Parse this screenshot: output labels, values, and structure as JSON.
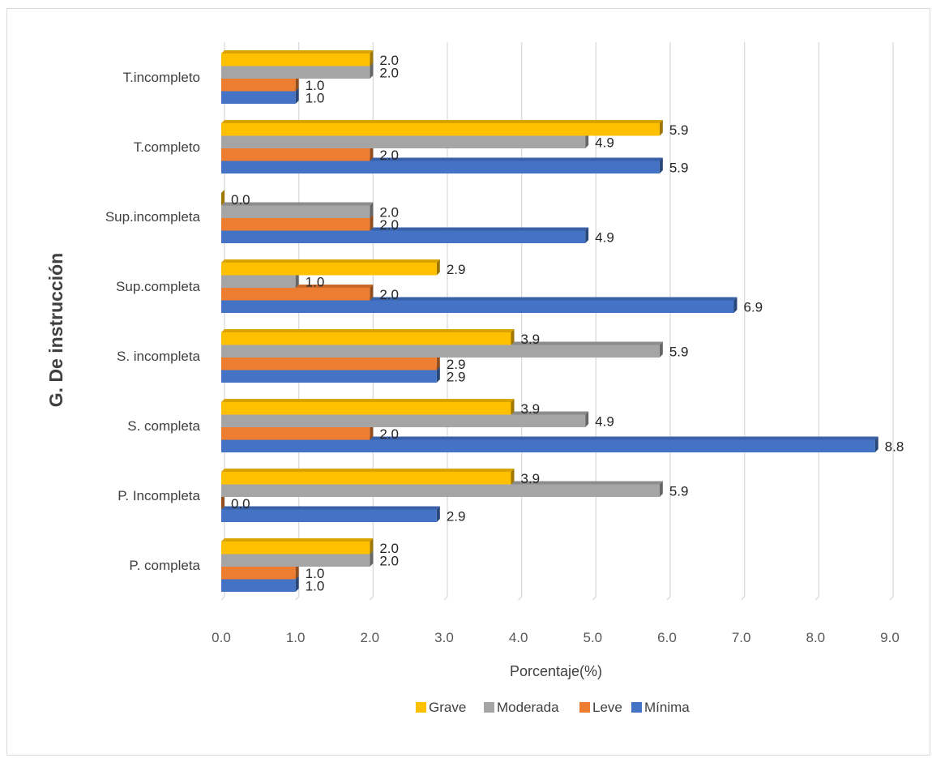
{
  "chart_data": {
    "type": "bar",
    "orientation": "horizontal",
    "categories": [
      "P. completa",
      "P. Incompleta",
      "S. completa",
      "S. incompleta",
      "Sup.completa",
      "Sup.incompleta",
      "T.completo",
      "T.incompleto"
    ],
    "series": [
      {
        "name": "Mínima",
        "color": "#4472C4",
        "values": [
          1.0,
          2.9,
          8.8,
          2.9,
          6.9,
          4.9,
          5.9,
          1.0
        ]
      },
      {
        "name": "Leve",
        "color": "#ED7D31",
        "values": [
          1.0,
          0.0,
          2.0,
          2.9,
          2.0,
          2.0,
          2.0,
          1.0
        ]
      },
      {
        "name": "Moderada",
        "color": "#A5A5A5",
        "values": [
          2.0,
          5.9,
          4.9,
          5.9,
          1.0,
          2.0,
          4.9,
          2.0
        ]
      },
      {
        "name": "Grave",
        "color": "#FFC000",
        "values": [
          2.0,
          3.9,
          3.9,
          3.9,
          2.9,
          0.0,
          5.9,
          2.0
        ]
      }
    ],
    "legend_order": [
      "Grave",
      "Moderada",
      "Leve",
      "Mínima"
    ],
    "xlabel": "Porcentaje(%)",
    "ylabel": "G.  De instrucción",
    "xlim": [
      0,
      9
    ],
    "xticks": [
      "0.0",
      "1.0",
      "2.0",
      "3.0",
      "4.0",
      "5.0",
      "6.0",
      "7.0",
      "8.0",
      "9.0"
    ],
    "grid": true,
    "legend_position": "bottom"
  }
}
